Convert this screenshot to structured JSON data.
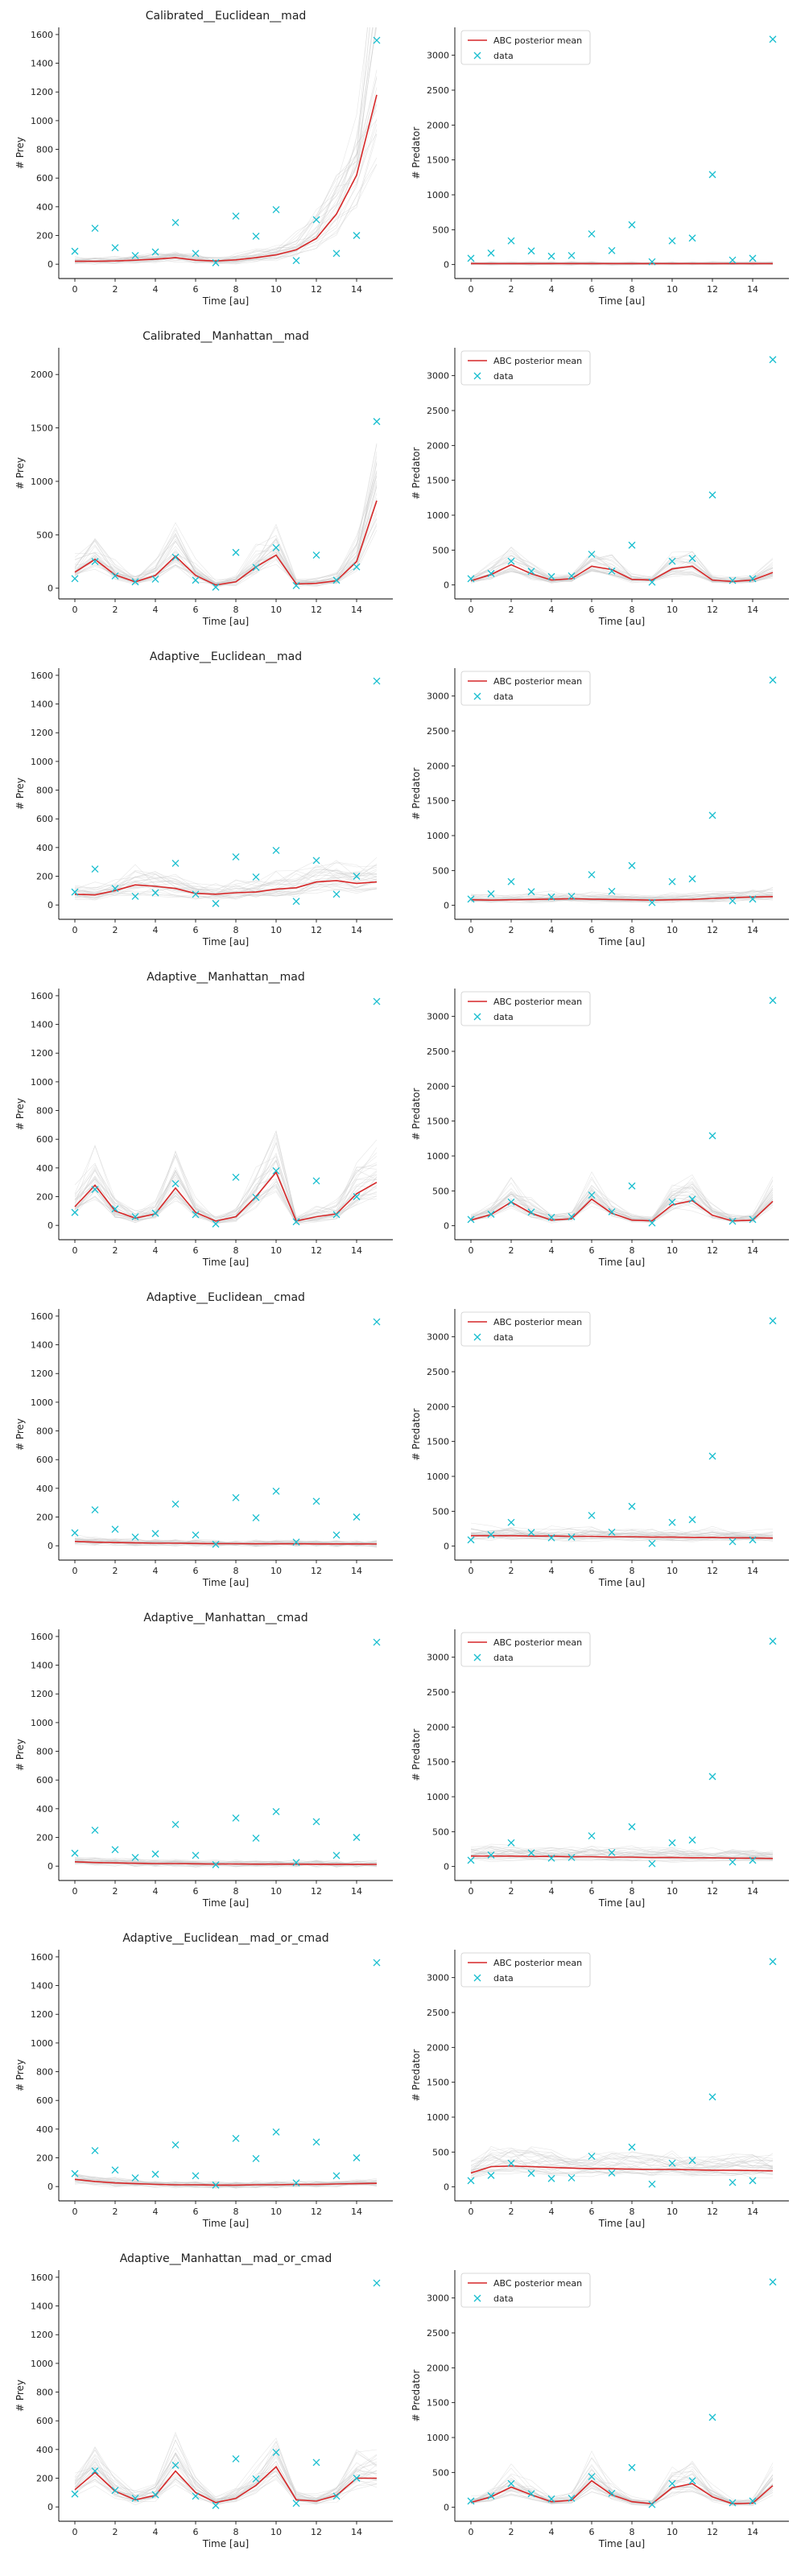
{
  "figure": {
    "obs_time": [
      0,
      1,
      2,
      3,
      4,
      5,
      6,
      7,
      8,
      9,
      10,
      11,
      12,
      13,
      14,
      15
    ],
    "obs_prey": [
      90,
      250,
      115,
      60,
      85,
      290,
      75,
      10,
      335,
      195,
      380,
      25,
      310,
      75,
      200,
      1560
    ],
    "obs_pred": [
      90,
      165,
      340,
      195,
      120,
      130,
      440,
      200,
      570,
      40,
      340,
      380,
      1290,
      65,
      90,
      3230
    ],
    "colors": {
      "mean": "#d62728",
      "data": "#17becf",
      "sim": "#c8c8c8"
    },
    "legend": {
      "mean_label": "ABC posterior mean",
      "data_label": "data"
    },
    "xlabel": "Time [au]",
    "ylabel_prey": "# Prey",
    "ylabel_pred": "# Predator"
  },
  "chart_data": [
    {
      "type": "line",
      "title": "Calibrated__Euclidean__mad",
      "xlabel": "Time [au]",
      "ylabel": "# Prey",
      "xlim": [
        -0.8,
        15.8
      ],
      "ylim": [
        -100,
        1650
      ],
      "yticks": [
        0,
        200,
        400,
        600,
        800,
        1000,
        1200,
        1400,
        1600
      ],
      "xticks": [
        0,
        2,
        4,
        6,
        8,
        10,
        12,
        14
      ],
      "legend": false,
      "series": [
        {
          "name": "ABC posterior mean",
          "x": [
            0,
            1,
            2,
            3,
            4,
            5,
            6,
            7,
            8,
            9,
            10,
            11,
            12,
            13,
            14,
            15
          ],
          "y": [
            20,
            20,
            22,
            28,
            35,
            45,
            28,
            22,
            30,
            45,
            65,
            100,
            180,
            350,
            620,
            1180
          ]
        }
      ]
    },
    {
      "type": "line",
      "title": "",
      "xlabel": "Time [au]",
      "ylabel": "# Predator",
      "xlim": [
        -0.8,
        15.8
      ],
      "ylim": [
        -200,
        3400
      ],
      "yticks": [
        0,
        500,
        1000,
        1500,
        2000,
        2500,
        3000
      ],
      "xticks": [
        0,
        2,
        4,
        6,
        8,
        10,
        12,
        14
      ],
      "legend": "top-left",
      "series": [
        {
          "name": "ABC posterior mean",
          "x": [
            0,
            1,
            2,
            3,
            4,
            5,
            6,
            7,
            8,
            9,
            10,
            11,
            12,
            13,
            14,
            15
          ],
          "y": [
            15,
            15,
            15,
            15,
            15,
            15,
            15,
            15,
            15,
            15,
            15,
            15,
            15,
            15,
            15,
            15
          ]
        }
      ]
    },
    {
      "type": "line",
      "title": "Calibrated__Manhattan__mad",
      "xlabel": "Time [au]",
      "ylabel": "# Prey",
      "xlim": [
        -0.8,
        15.8
      ],
      "ylim": [
        -100,
        2250
      ],
      "yticks": [
        0,
        500,
        1000,
        1500,
        2000
      ],
      "xticks": [
        0,
        2,
        4,
        6,
        8,
        10,
        12,
        14
      ],
      "legend": false,
      "series": [
        {
          "name": "ABC posterior mean",
          "x": [
            0,
            1,
            2,
            3,
            4,
            5,
            6,
            7,
            8,
            9,
            10,
            11,
            12,
            13,
            14,
            15
          ],
          "y": [
            150,
            270,
            125,
            60,
            120,
            300,
            120,
            30,
            60,
            200,
            310,
            40,
            45,
            70,
            250,
            820
          ]
        }
      ]
    },
    {
      "type": "line",
      "title": "",
      "xlabel": "Time [au]",
      "ylabel": "# Predator",
      "xlim": [
        -0.8,
        15.8
      ],
      "ylim": [
        -200,
        3400
      ],
      "yticks": [
        0,
        500,
        1000,
        1500,
        2000,
        2500,
        3000
      ],
      "xticks": [
        0,
        2,
        4,
        6,
        8,
        10,
        12,
        14
      ],
      "legend": "top-left",
      "series": [
        {
          "name": "ABC posterior mean",
          "x": [
            0,
            1,
            2,
            3,
            4,
            5,
            6,
            7,
            8,
            9,
            10,
            11,
            12,
            13,
            14,
            15
          ],
          "y": [
            60,
            150,
            290,
            160,
            70,
            90,
            270,
            220,
            80,
            70,
            230,
            270,
            70,
            50,
            70,
            180
          ]
        }
      ]
    },
    {
      "type": "line",
      "title": "Adaptive__Euclidean__mad",
      "xlabel": "Time [au]",
      "ylabel": "# Prey",
      "xlim": [
        -0.8,
        15.8
      ],
      "ylim": [
        -100,
        1650
      ],
      "yticks": [
        0,
        200,
        400,
        600,
        800,
        1000,
        1200,
        1400,
        1600
      ],
      "xticks": [
        0,
        2,
        4,
        6,
        8,
        10,
        12,
        14
      ],
      "legend": false,
      "series": [
        {
          "name": "ABC posterior mean",
          "x": [
            0,
            1,
            2,
            3,
            4,
            5,
            6,
            7,
            8,
            9,
            10,
            11,
            12,
            13,
            14,
            15
          ],
          "y": [
            75,
            70,
            100,
            140,
            130,
            115,
            80,
            75,
            85,
            90,
            110,
            120,
            160,
            170,
            150,
            160
          ]
        }
      ]
    },
    {
      "type": "line",
      "title": "",
      "xlabel": "Time [au]",
      "ylabel": "# Predator",
      "xlim": [
        -0.8,
        15.8
      ],
      "ylim": [
        -200,
        3400
      ],
      "yticks": [
        0,
        500,
        1000,
        1500,
        2000,
        2500,
        3000
      ],
      "xticks": [
        0,
        2,
        4,
        6,
        8,
        10,
        12,
        14
      ],
      "legend": "top-left",
      "series": [
        {
          "name": "ABC posterior mean",
          "x": [
            0,
            1,
            2,
            3,
            4,
            5,
            6,
            7,
            8,
            9,
            10,
            11,
            12,
            13,
            14,
            15
          ],
          "y": [
            80,
            75,
            80,
            85,
            90,
            95,
            90,
            85,
            80,
            75,
            80,
            85,
            100,
            110,
            120,
            125
          ]
        }
      ]
    },
    {
      "type": "line",
      "title": "Adaptive__Manhattan__mad",
      "xlabel": "Time [au]",
      "ylabel": "# Prey",
      "xlim": [
        -0.8,
        15.8
      ],
      "ylim": [
        -100,
        1650
      ],
      "yticks": [
        0,
        200,
        400,
        600,
        800,
        1000,
        1200,
        1400,
        1600
      ],
      "xticks": [
        0,
        2,
        4,
        6,
        8,
        10,
        12,
        14
      ],
      "legend": false,
      "series": [
        {
          "name": "ABC posterior mean",
          "x": [
            0,
            1,
            2,
            3,
            4,
            5,
            6,
            7,
            8,
            9,
            10,
            11,
            12,
            13,
            14,
            15
          ],
          "y": [
            130,
            280,
            100,
            50,
            80,
            260,
            90,
            30,
            60,
            200,
            370,
            30,
            60,
            80,
            220,
            300
          ]
        }
      ]
    },
    {
      "type": "line",
      "title": "",
      "xlabel": "Time [au]",
      "ylabel": "# Predator",
      "xlim": [
        -0.8,
        15.8
      ],
      "ylim": [
        -200,
        3400
      ],
      "yticks": [
        0,
        500,
        1000,
        1500,
        2000,
        2500,
        3000
      ],
      "xticks": [
        0,
        2,
        4,
        6,
        8,
        10,
        12,
        14
      ],
      "legend": "top-left",
      "series": [
        {
          "name": "ABC posterior mean",
          "x": [
            0,
            1,
            2,
            3,
            4,
            5,
            6,
            7,
            8,
            9,
            10,
            11,
            12,
            13,
            14,
            15
          ],
          "y": [
            80,
            160,
            340,
            180,
            80,
            100,
            380,
            180,
            80,
            70,
            300,
            360,
            150,
            70,
            80,
            350
          ]
        }
      ]
    },
    {
      "type": "line",
      "title": "Adaptive__Euclidean__cmad",
      "xlabel": "Time [au]",
      "ylabel": "# Prey",
      "xlim": [
        -0.8,
        15.8
      ],
      "ylim": [
        -100,
        1650
      ],
      "yticks": [
        0,
        200,
        400,
        600,
        800,
        1000,
        1200,
        1400,
        1600
      ],
      "xticks": [
        0,
        2,
        4,
        6,
        8,
        10,
        12,
        14
      ],
      "legend": false,
      "series": [
        {
          "name": "ABC posterior mean",
          "x": [
            0,
            1,
            2,
            3,
            4,
            5,
            6,
            7,
            8,
            9,
            10,
            11,
            12,
            13,
            14,
            15
          ],
          "y": [
            30,
            25,
            22,
            20,
            18,
            18,
            16,
            15,
            15,
            14,
            14,
            14,
            13,
            13,
            13,
            12
          ]
        }
      ]
    },
    {
      "type": "line",
      "title": "",
      "xlabel": "Time [au]",
      "ylabel": "# Predator",
      "xlim": [
        -0.8,
        15.8
      ],
      "ylim": [
        -200,
        3400
      ],
      "yticks": [
        0,
        500,
        1000,
        1500,
        2000,
        2500,
        3000
      ],
      "xticks": [
        0,
        2,
        4,
        6,
        8,
        10,
        12,
        14
      ],
      "legend": "top-left",
      "series": [
        {
          "name": "ABC posterior mean",
          "x": [
            0,
            1,
            2,
            3,
            4,
            5,
            6,
            7,
            8,
            9,
            10,
            11,
            12,
            13,
            14,
            15
          ],
          "y": [
            150,
            150,
            150,
            145,
            145,
            140,
            140,
            135,
            135,
            130,
            130,
            125,
            125,
            120,
            120,
            115
          ]
        }
      ]
    },
    {
      "type": "line",
      "title": "Adaptive__Manhattan__cmad",
      "xlabel": "Time [au]",
      "ylabel": "# Prey",
      "xlim": [
        -0.8,
        15.8
      ],
      "ylim": [
        -100,
        1650
      ],
      "yticks": [
        0,
        200,
        400,
        600,
        800,
        1000,
        1200,
        1400,
        1600
      ],
      "xticks": [
        0,
        2,
        4,
        6,
        8,
        10,
        12,
        14
      ],
      "legend": false,
      "series": [
        {
          "name": "ABC posterior mean",
          "x": [
            0,
            1,
            2,
            3,
            4,
            5,
            6,
            7,
            8,
            9,
            10,
            11,
            12,
            13,
            14,
            15
          ],
          "y": [
            30,
            25,
            22,
            20,
            18,
            18,
            16,
            15,
            15,
            14,
            14,
            14,
            13,
            13,
            13,
            12
          ]
        }
      ]
    },
    {
      "type": "line",
      "title": "",
      "xlabel": "Time [au]",
      "ylabel": "# Predator",
      "xlim": [
        -0.8,
        15.8
      ],
      "ylim": [
        -200,
        3400
      ],
      "yticks": [
        0,
        500,
        1000,
        1500,
        2000,
        2500,
        3000
      ],
      "xticks": [
        0,
        2,
        4,
        6,
        8,
        10,
        12,
        14
      ],
      "legend": "top-left",
      "series": [
        {
          "name": "ABC posterior mean",
          "x": [
            0,
            1,
            2,
            3,
            4,
            5,
            6,
            7,
            8,
            9,
            10,
            11,
            12,
            13,
            14,
            15
          ],
          "y": [
            150,
            150,
            150,
            145,
            145,
            140,
            140,
            135,
            135,
            130,
            130,
            125,
            125,
            120,
            120,
            115
          ]
        }
      ]
    },
    {
      "type": "line",
      "title": "Adaptive__Euclidean__mad_or_cmad",
      "xlabel": "Time [au]",
      "ylabel": "# Prey",
      "xlim": [
        -0.8,
        15.8
      ],
      "ylim": [
        -100,
        1650
      ],
      "yticks": [
        0,
        200,
        400,
        600,
        800,
        1000,
        1200,
        1400,
        1600
      ],
      "xticks": [
        0,
        2,
        4,
        6,
        8,
        10,
        12,
        14
      ],
      "legend": false,
      "series": [
        {
          "name": "ABC posterior mean",
          "x": [
            0,
            1,
            2,
            3,
            4,
            5,
            6,
            7,
            8,
            9,
            10,
            11,
            12,
            13,
            14,
            15
          ],
          "y": [
            50,
            35,
            25,
            20,
            15,
            12,
            12,
            10,
            10,
            12,
            12,
            15,
            15,
            18,
            20,
            22
          ]
        }
      ]
    },
    {
      "type": "line",
      "title": "",
      "xlabel": "Time [au]",
      "ylabel": "# Predator",
      "xlim": [
        -0.8,
        15.8
      ],
      "ylim": [
        -200,
        3400
      ],
      "yticks": [
        0,
        500,
        1000,
        1500,
        2000,
        2500,
        3000
      ],
      "xticks": [
        0,
        2,
        4,
        6,
        8,
        10,
        12,
        14
      ],
      "legend": "top-left",
      "series": [
        {
          "name": "ABC posterior mean",
          "x": [
            0,
            1,
            2,
            3,
            4,
            5,
            6,
            7,
            8,
            9,
            10,
            11,
            12,
            13,
            14,
            15
          ],
          "y": [
            200,
            290,
            300,
            290,
            280,
            270,
            260,
            260,
            255,
            250,
            250,
            245,
            240,
            240,
            235,
            230
          ]
        }
      ]
    },
    {
      "type": "line",
      "title": "Adaptive__Manhattan__mad_or_cmad",
      "xlabel": "Time [au]",
      "ylabel": "# Prey",
      "xlim": [
        -0.8,
        15.8
      ],
      "ylim": [
        -100,
        1650
      ],
      "yticks": [
        0,
        200,
        400,
        600,
        800,
        1000,
        1200,
        1400,
        1600
      ],
      "xticks": [
        0,
        2,
        4,
        6,
        8,
        10,
        12,
        14
      ],
      "legend": false,
      "series": [
        {
          "name": "ABC posterior mean",
          "x": [
            0,
            1,
            2,
            3,
            4,
            5,
            6,
            7,
            8,
            9,
            10,
            11,
            12,
            13,
            14,
            15
          ],
          "y": [
            120,
            240,
            110,
            50,
            80,
            250,
            100,
            30,
            60,
            150,
            280,
            50,
            40,
            80,
            200,
            200
          ]
        }
      ]
    },
    {
      "type": "line",
      "title": "",
      "xlabel": "Time [au]",
      "ylabel": "# Predator",
      "xlim": [
        -0.8,
        15.8
      ],
      "ylim": [
        -200,
        3400
      ],
      "yticks": [
        0,
        500,
        1000,
        1500,
        2000,
        2500,
        3000
      ],
      "xticks": [
        0,
        2,
        4,
        6,
        8,
        10,
        12,
        14
      ],
      "legend": "top-left",
      "series": [
        {
          "name": "ABC posterior mean",
          "x": [
            0,
            1,
            2,
            3,
            4,
            5,
            6,
            7,
            8,
            9,
            10,
            11,
            12,
            13,
            14,
            15
          ],
          "y": [
            70,
            150,
            290,
            180,
            80,
            100,
            380,
            180,
            80,
            50,
            280,
            340,
            150,
            50,
            60,
            310
          ]
        }
      ]
    }
  ]
}
